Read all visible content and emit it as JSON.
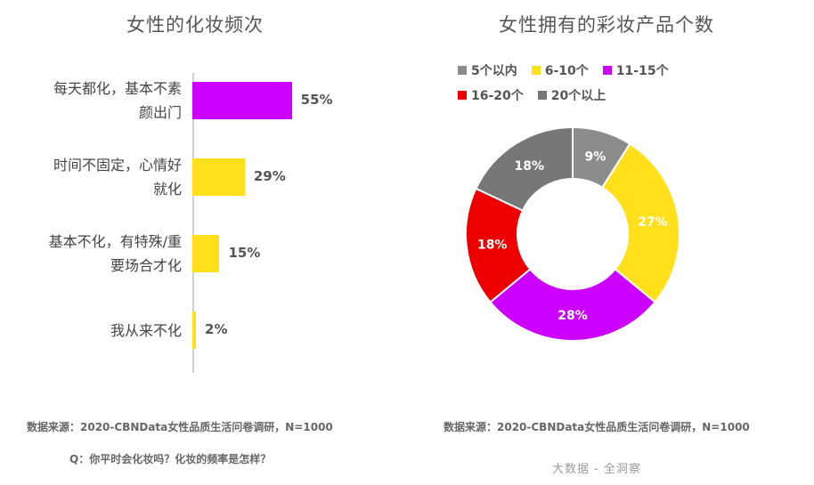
{
  "chart_data": [
    {
      "type": "bar",
      "title": "女性的化妆频次",
      "categories": [
        [
          "每天都化，基本不素",
          "颜出门"
        ],
        [
          "时间不固定，心情好",
          "就化"
        ],
        [
          "基本不化，有特殊/重",
          "要场合才化"
        ],
        [
          "我从来不化"
        ]
      ],
      "values": [
        55,
        29,
        15,
        2
      ],
      "value_labels": [
        "55%",
        "29%",
        "15%",
        "2%"
      ],
      "bar_colors": [
        "#cc00ff",
        "#ffe01a",
        "#ffe01a",
        "#ffe01a"
      ],
      "xlim": [
        0,
        100
      ],
      "grid": false
    },
    {
      "type": "pie",
      "title": "女性拥有的彩妆产品个数",
      "categories": [
        "5个以内",
        "6-10个",
        "11-15个",
        "16-20个",
        "20个以上"
      ],
      "values": [
        9,
        27,
        28,
        18,
        18
      ],
      "value_labels": [
        "9%",
        "27%",
        "28%",
        "18%",
        "18%"
      ],
      "colors": [
        "#8c8c8c",
        "#ffe01a",
        "#cc00ff",
        "#ee0000",
        "#777777"
      ],
      "legend_position": "top"
    }
  ],
  "footer": {
    "left_source": "数据来源：2020-CBNData女性品质生活问卷调研，N=1000",
    "question": "Q：你平时会化妆吗？化妆的频率是怎样？",
    "right_source": "数据来源：2020-CBNData女性品质生活问卷调研，N=1000",
    "watermark": "大数据 - 全洞察"
  }
}
